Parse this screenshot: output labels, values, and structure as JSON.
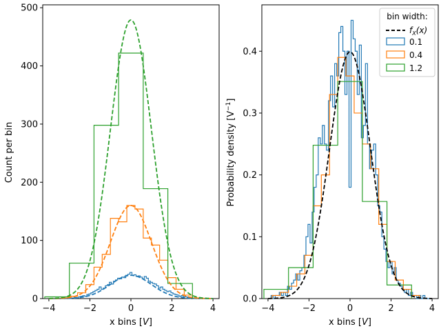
{
  "chart_data": [
    {
      "type": "histogram",
      "xlabel": "x bins [V]",
      "ylabel": "Count per bin",
      "xlim": [
        -4.3,
        4.3
      ],
      "ylim": [
        0,
        505
      ],
      "xticks": [
        -4,
        -2,
        0,
        2,
        4
      ],
      "yticks": [
        0,
        100,
        200,
        300,
        400,
        500
      ],
      "grid": false,
      "series": [
        {
          "name": "0.1",
          "color": "#1f77b4",
          "bin_width": 0.1,
          "x": [
            -3.2,
            -3.1,
            -3.0,
            -2.9,
            -2.8,
            -2.7,
            -2.6,
            -2.5,
            -2.4,
            -2.3,
            -2.2,
            -2.1,
            -2.0,
            -1.9,
            -1.8,
            -1.7,
            -1.6,
            -1.5,
            -1.4,
            -1.3,
            -1.2,
            -1.1,
            -1.0,
            -0.9,
            -0.8,
            -0.7,
            -0.6,
            -0.5,
            -0.4,
            -0.3,
            -0.2,
            -0.1,
            0.0,
            0.1,
            0.2,
            0.3,
            0.4,
            0.5,
            0.6,
            0.7,
            0.8,
            0.9,
            1.0,
            1.1,
            1.2,
            1.3,
            1.4,
            1.5,
            1.6,
            1.7,
            1.8,
            1.9,
            2.0,
            2.1,
            2.2,
            2.3,
            2.4,
            2.5,
            2.6,
            2.7,
            2.8,
            2.9,
            3.0,
            3.1,
            3.2
          ],
          "counts": [
            0,
            1,
            0,
            1,
            1,
            2,
            1,
            3,
            4,
            5,
            4,
            7,
            8,
            10,
            12,
            14,
            16,
            20,
            16,
            18,
            22,
            24,
            28,
            25,
            30,
            32,
            35,
            34,
            37,
            36,
            40,
            42,
            45,
            40,
            41,
            38,
            39,
            37,
            34,
            38,
            35,
            30,
            28,
            26,
            25,
            22,
            18,
            20,
            16,
            14,
            12,
            13,
            10,
            8,
            7,
            6,
            4,
            5,
            3,
            3,
            2,
            2,
            1,
            1,
            0
          ]
        },
        {
          "name": "0.4",
          "color": "#ff7f0e",
          "bin_width": 0.4,
          "x": [
            -3.2,
            -2.8,
            -2.4,
            -2.0,
            -1.6,
            -1.2,
            -0.8,
            -0.4,
            0.0,
            0.4,
            0.8,
            1.2,
            1.6,
            2.0,
            2.4,
            2.8,
            3.2
          ],
          "counts": [
            1,
            4,
            10,
            24,
            54,
            76,
            138,
            132,
            160,
            154,
            104,
            92,
            66,
            36,
            16,
            6,
            1
          ]
        },
        {
          "name": "1.2",
          "color": "#2ca02c",
          "bin_width": 1.2,
          "x": [
            -3.6,
            -2.4,
            -1.2,
            0.0,
            1.2,
            2.4
          ],
          "counts": [
            3,
            61,
            298,
            422,
            189,
            26
          ]
        },
        {
          "name": "f_X(x)",
          "style": "dashed",
          "scaled_peaks": [
            {
              "color": "#1f77b4",
              "peak": 40
            },
            {
              "color": "#ff7f0e",
              "peak": 160
            },
            {
              "color": "#2ca02c",
              "peak": 479
            }
          ]
        }
      ]
    },
    {
      "type": "histogram",
      "xlabel": "x bins [V]",
      "ylabel": "Probability density [V^-1]",
      "xlim": [
        -4.3,
        4.3
      ],
      "ylim": [
        0,
        0.475
      ],
      "xticks": [
        -4,
        -2,
        0,
        2,
        4
      ],
      "yticks": [
        0.0,
        0.1,
        0.2,
        0.3,
        0.4
      ],
      "grid": false,
      "legend": {
        "title": "bin width:",
        "placement": "top-right",
        "entries": [
          "f_X(x)",
          "0.1",
          "0.4",
          "1.2"
        ]
      },
      "series": [
        {
          "name": "f_X(x)",
          "style": "dashed",
          "color": "#000000",
          "peak": 0.399
        },
        {
          "name": "0.1",
          "color": "#1f77b4",
          "bin_width": 0.1,
          "x": [
            -3.9,
            -3.8,
            -3.7,
            -3.6,
            -3.5,
            -3.4,
            -3.3,
            -3.2,
            -3.1,
            -3.0,
            -2.9,
            -2.8,
            -2.7,
            -2.6,
            -2.5,
            -2.4,
            -2.3,
            -2.2,
            -2.1,
            -2.0,
            -1.9,
            -1.8,
            -1.7,
            -1.6,
            -1.5,
            -1.4,
            -1.3,
            -1.2,
            -1.1,
            -1.0,
            -0.9,
            -0.8,
            -0.7,
            -0.6,
            -0.5,
            -0.4,
            -0.3,
            -0.2,
            -0.1,
            0.0,
            0.1,
            0.2,
            0.3,
            0.4,
            0.5,
            0.6,
            0.7,
            0.8,
            0.9,
            1.0,
            1.1,
            1.2,
            1.3,
            1.4,
            1.5,
            1.6,
            1.7,
            1.8,
            1.9,
            2.0,
            2.1,
            2.2,
            2.3,
            2.4,
            2.5,
            2.6,
            2.7,
            2.8,
            2.9,
            3.0,
            3.1,
            3.2,
            3.3,
            3.4,
            3.5,
            3.6,
            3.7,
            3.8,
            3.9
          ],
          "density": [
            0,
            0.005,
            0,
            0.005,
            0.005,
            0.01,
            0.005,
            0.01,
            0.005,
            0.02,
            0.015,
            0.025,
            0.03,
            0.04,
            0.03,
            0.045,
            0.05,
            0.07,
            0.1,
            0.12,
            0.09,
            0.14,
            0.18,
            0.2,
            0.26,
            0.25,
            0.28,
            0.25,
            0.24,
            0.32,
            0.36,
            0.31,
            0.38,
            0.36,
            0.43,
            0.44,
            0.4,
            0.33,
            0.4,
            0.18,
            0.45,
            0.42,
            0.4,
            0.33,
            0.41,
            0.26,
            0.28,
            0.38,
            0.25,
            0.21,
            0.24,
            0.25,
            0.2,
            0.15,
            0.14,
            0.1,
            0.08,
            0.06,
            0.05,
            0.06,
            0.04,
            0.05,
            0.03,
            0.025,
            0.02,
            0.015,
            0.01,
            0.015,
            0.005,
            0.01,
            0.005,
            0.005,
            0,
            0.005,
            0,
            0.005,
            0,
            0,
            0
          ]
        },
        {
          "name": "0.4",
          "color": "#ff7f0e",
          "bin_width": 0.4,
          "x": [
            -3.6,
            -3.2,
            -2.8,
            -2.4,
            -2.0,
            -1.6,
            -1.2,
            -0.8,
            -0.4,
            0.0,
            0.4,
            0.8,
            1.2,
            1.6,
            2.0,
            2.4,
            2.8,
            3.2
          ],
          "density": [
            0.005,
            0.01,
            0.02,
            0.04,
            0.07,
            0.15,
            0.2,
            0.33,
            0.39,
            0.36,
            0.3,
            0.25,
            0.21,
            0.12,
            0.06,
            0.03,
            0.015,
            0.005
          ]
        },
        {
          "name": "1.2",
          "color": "#2ca02c",
          "bin_width": 1.2,
          "x": [
            -3.6,
            -2.4,
            -1.2,
            0.0,
            1.2,
            2.4
          ],
          "density": [
            0.015,
            0.05,
            0.248,
            0.351,
            0.157,
            0.022
          ]
        }
      ]
    }
  ]
}
